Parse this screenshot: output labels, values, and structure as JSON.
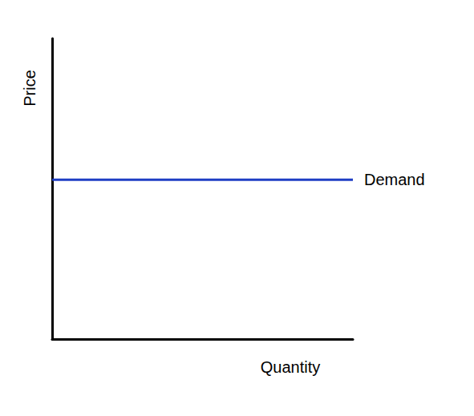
{
  "chart_data": {
    "type": "line",
    "xlabel": "Quantity",
    "ylabel": "Price",
    "x": [
      0,
      10
    ],
    "series": [
      {
        "name": "Demand",
        "color": "#1f3ec4",
        "values": [
          5.3,
          5.3
        ]
      }
    ],
    "xlim": [
      0,
      10
    ],
    "ylim": [
      0,
      10
    ],
    "tick_labels": false,
    "grid": false
  }
}
